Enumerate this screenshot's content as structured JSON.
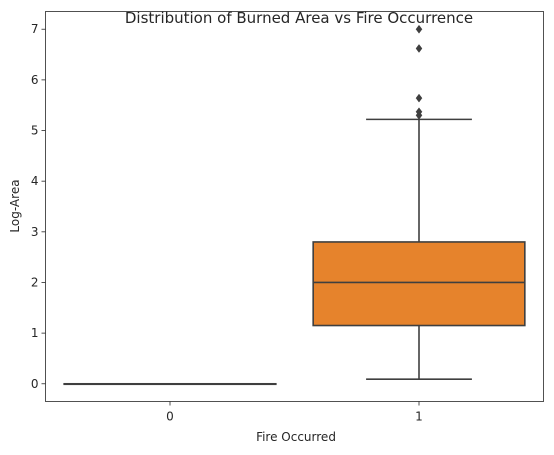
{
  "chart_data": {
    "type": "box",
    "title": "Distribution of Burned Area vs Fire Occurrence",
    "xlabel": "Fire Occurred",
    "ylabel": "Log-Area",
    "categories": [
      "0",
      "1"
    ],
    "ylim": [
      -0.35,
      7.35
    ],
    "yticks": [
      0,
      1,
      2,
      3,
      4,
      5,
      6,
      7
    ],
    "grid": false,
    "boxes": [
      {
        "category": "0",
        "min": 0,
        "q1": 0,
        "median": 0,
        "q3": 0,
        "max": 0,
        "outliers": [],
        "color": "#1f77b4"
      },
      {
        "category": "1",
        "min": 0.09,
        "q1": 1.15,
        "median": 2.0,
        "q3": 2.8,
        "max": 5.22,
        "outliers": [
          5.3,
          5.37,
          5.64,
          6.62,
          7.0
        ],
        "color": "#e6832c"
      }
    ]
  }
}
